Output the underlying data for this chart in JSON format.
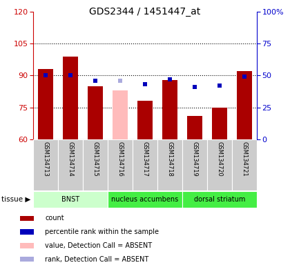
{
  "title": "GDS2344 / 1451447_at",
  "samples": [
    "GSM134713",
    "GSM134714",
    "GSM134715",
    "GSM134716",
    "GSM134717",
    "GSM134718",
    "GSM134719",
    "GSM134720",
    "GSM134721"
  ],
  "bar_values": [
    93,
    99,
    85,
    83,
    78,
    88,
    71,
    75,
    92
  ],
  "bar_absent": [
    false,
    false,
    false,
    true,
    false,
    false,
    false,
    false,
    false
  ],
  "rank_values": [
    50,
    50,
    46,
    46,
    43,
    47,
    41,
    42,
    49
  ],
  "rank_absent": [
    false,
    false,
    false,
    true,
    false,
    false,
    false,
    false,
    false
  ],
  "ylim_left": [
    60,
    120
  ],
  "ylim_right": [
    0,
    100
  ],
  "yticks_left": [
    60,
    75,
    90,
    105,
    120
  ],
  "yticks_right": [
    0,
    25,
    50,
    75,
    100
  ],
  "ytick_labels_right": [
    "0",
    "25",
    "50",
    "75",
    "100%"
  ],
  "bar_color": "#aa0000",
  "bar_absent_color": "#ffbbbb",
  "rank_color": "#0000bb",
  "rank_absent_color": "#aaaadd",
  "tissue_groups": [
    {
      "label": "BNST",
      "start": 0,
      "end": 3,
      "color": "#ccffcc"
    },
    {
      "label": "nucleus accumbens",
      "start": 3,
      "end": 6,
      "color": "#44ee44"
    },
    {
      "label": "dorsal striatum",
      "start": 6,
      "end": 9,
      "color": "#44ee44"
    }
  ],
  "legend_items": [
    {
      "color": "#aa0000",
      "label": "count"
    },
    {
      "color": "#0000bb",
      "label": "percentile rank within the sample"
    },
    {
      "color": "#ffbbbb",
      "label": "value, Detection Call = ABSENT"
    },
    {
      "color": "#aaaadd",
      "label": "rank, Detection Call = ABSENT"
    }
  ],
  "tissue_label": "tissue",
  "background_color": "#ffffff",
  "tick_label_color_left": "#cc0000",
  "tick_label_color_right": "#0000cc",
  "marker_size": 5,
  "bar_width": 0.6,
  "sample_bg": "#cccccc",
  "gridline_ticks": [
    75,
    90,
    105
  ]
}
